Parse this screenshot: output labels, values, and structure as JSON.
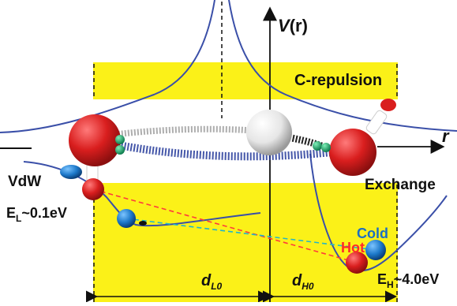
{
  "axes": {
    "y_label_main": "V",
    "y_label_paren": "(r)",
    "x_label": "r"
  },
  "regions": {
    "repulsion_label": "C-repulsion"
  },
  "labels": {
    "vdw": "VdW",
    "exchange": "Exchange",
    "cold": "Cold",
    "hot": "Hot"
  },
  "energies": {
    "low": {
      "main": "E",
      "sub": "L",
      "value": "~0.1eV"
    },
    "high": {
      "main": "E",
      "sub": "H",
      "value": "~4.0eV"
    }
  },
  "distances": {
    "d_low": {
      "main": "d",
      "sub": "L0"
    },
    "d_high": {
      "main": "d",
      "sub": "H0"
    }
  },
  "colors": {
    "yellow_band": "#fbf118",
    "curve_blue": "#3a4fa8",
    "oxygen_red": "#d91e1e",
    "hydrogen_white": "#f2f2f2",
    "ball_blue": "#1c78c9",
    "line_red": "#ff3b3b",
    "line_cyan": "#23b6c8",
    "hot_red": "#ff2a2a",
    "cold_blue": "#1c6fc2",
    "green_dot": "#1aa06a"
  }
}
